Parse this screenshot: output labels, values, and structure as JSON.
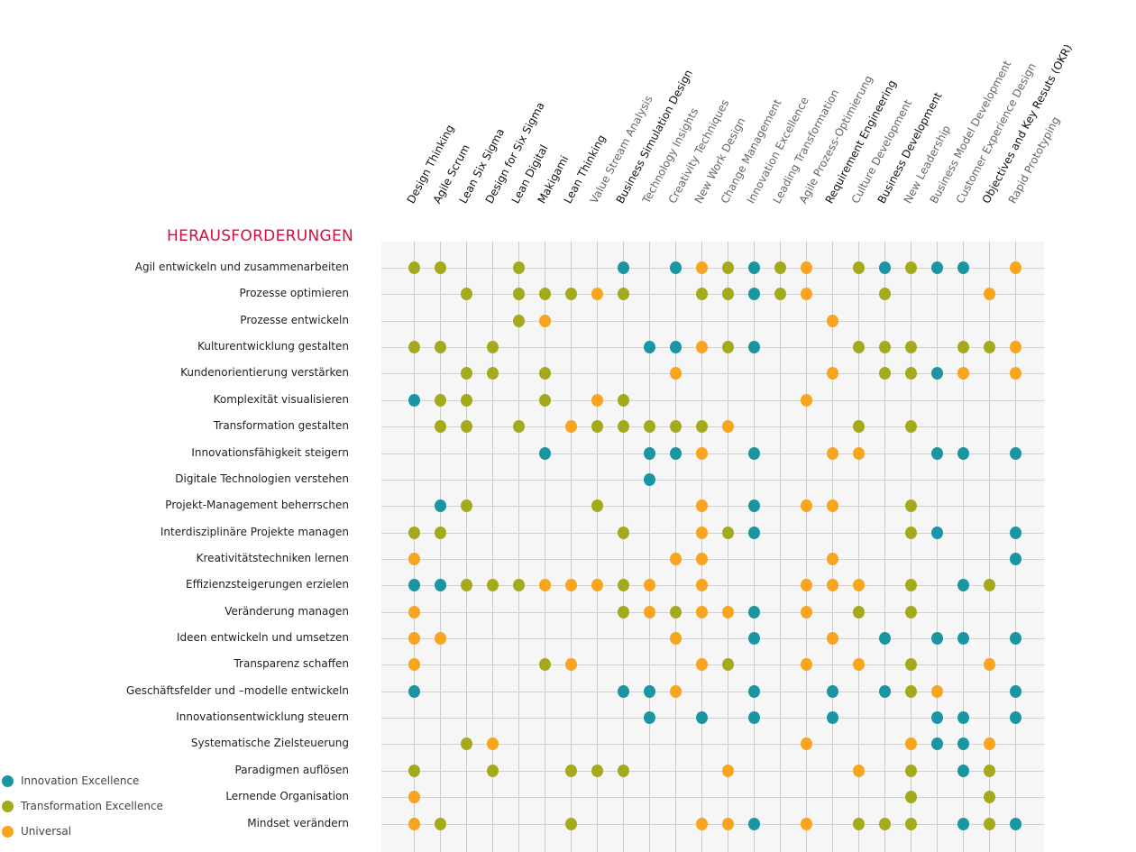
{
  "chart_data": {
    "type": "table",
    "title": "HERAUSFORDERUNGEN",
    "categories_colors": {
      "T": "#1a96a2",
      "G": "#a5aa1c",
      "O": "#f9a41f"
    },
    "legend": [
      {
        "key": "T",
        "label": "Innovation Excellence"
      },
      {
        "key": "G",
        "label": "Transformation Excellence"
      },
      {
        "key": "O",
        "label": "Universal"
      }
    ],
    "legend_placement": "bottom-left",
    "columns": [
      {
        "label": "Design Thinking",
        "dark": true
      },
      {
        "label": "Agile Scrum",
        "dark": true
      },
      {
        "label": "Lean Six Sigma",
        "dark": true
      },
      {
        "label": "Design for Six Sigma",
        "dark": true
      },
      {
        "label": "Lean Digital",
        "dark": true
      },
      {
        "label": "Makigami",
        "dark": true
      },
      {
        "label": "Lean Thinking",
        "dark": true
      },
      {
        "label": "Value Stream Analysis",
        "dark": false
      },
      {
        "label": "Business Simulation Design",
        "dark": true
      },
      {
        "label": "Technology Insights",
        "dark": false
      },
      {
        "label": "Creativity Techniques",
        "dark": false
      },
      {
        "label": "New Work Design",
        "dark": false
      },
      {
        "label": "Change Management",
        "dark": false
      },
      {
        "label": "Innovation Excellence",
        "dark": false
      },
      {
        "label": "Leading Transformation",
        "dark": false
      },
      {
        "label": "Agile Prozess-Optimierung",
        "dark": false
      },
      {
        "label": "Requirement Engineering",
        "dark": true
      },
      {
        "label": "Culture Development",
        "dark": false
      },
      {
        "label": "Business Development",
        "dark": true
      },
      {
        "label": "New Leadership",
        "dark": false
      },
      {
        "label": "Business Model Development",
        "dark": false
      },
      {
        "label": "Customer Experience Design",
        "dark": false
      },
      {
        "label": "Objectives and Key Resuts (OKR)",
        "dark": true
      },
      {
        "label": "Rapid Prototyping",
        "dark": false
      }
    ],
    "rows": [
      {
        "label": "Agil entwickeln und zusammenarbeiten",
        "cells": "GG..G...T.TOGTGO.GTGTT.O"
      },
      {
        "label": "Prozesse optimieren",
        "cells": "..G.GGGOG..GGTGO..G...O."
      },
      {
        "label": "Prozesse entwickeln",
        "cells": "....GO..........O......."
      },
      {
        "label": "Kulturentwicklung gestalten",
        "cells": "GG.G.....TTOGT...GGG.GGO"
      },
      {
        "label": "Kundenorientierung verstärken",
        "cells": "..GG.G....O.....O.GGTO.O"
      },
      {
        "label": "Komplexität visualisieren",
        "cells": "TGG..G.OG......O........"
      },
      {
        "label": "Transformation gestalten",
        "cells": ".GG.G.OGGGGGO....G.G...."
      },
      {
        "label": "Innovationsfähigkeit steigern",
        "cells": ".....T...TTO.T..OO..TT.T"
      },
      {
        "label": "Digitale Technologien verstehen",
        "cells": ".........T.............."
      },
      {
        "label": "Projekt-Management beherrschen",
        "cells": ".TG....G...O.T.OO..G...."
      },
      {
        "label": "Interdisziplinäre Projekte managen",
        "cells": "GG......G..OGT.....GT..T"
      },
      {
        "label": "Kreativitätstechniken lernen",
        "cells": "O.........OO....O......T"
      },
      {
        "label": "Effizienzsteigerungen erzielen",
        "cells": "TTGGGOOOGO.O...OOO.G.TG."
      },
      {
        "label": "Veränderung managen",
        "cells": "O.......GOGOOT.O.G.G...."
      },
      {
        "label": "Ideen entwickeln und umsetzen",
        "cells": "OO........O..T..O.T.TT.T"
      },
      {
        "label": "Transparenz schaffen",
        "cells": "O....GO....OG..O.O.G..O."
      },
      {
        "label": "Geschäftsfelder und –modelle entwickeln",
        "cells": "T.......TTO..T..T.TGO..T"
      },
      {
        "label": "Innovationsentwicklung steuern",
        "cells": ".........T.T.T..T...TT.T"
      },
      {
        "label": "Systematische Zielsteuerung",
        "cells": "..GO...........O...OTTO."
      },
      {
        "label": "Paradigmen auflösen",
        "cells": "G..G..GGG...O....O.G.TG."
      },
      {
        "label": "Lernende Organisation",
        "cells": "O..................G..G."
      },
      {
        "label": "Mindset verändern",
        "cells": "OG....G....OOT.O.GGG.TGT"
      }
    ]
  }
}
